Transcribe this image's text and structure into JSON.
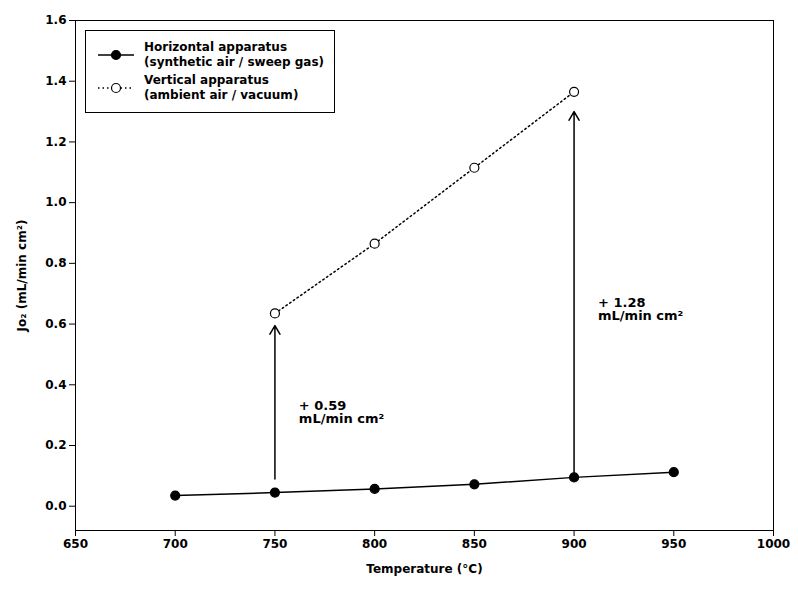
{
  "chart_data": {
    "type": "line",
    "xlabel": "Temperature (°C)",
    "ylabel": "Jo₂ (mL/min cm²)",
    "series": [
      {
        "name": "Horizontal apparatus\n(synthetic air / sweep gas)",
        "x": [
          700,
          750,
          800,
          850,
          900,
          950
        ],
        "values": [
          0.035,
          0.045,
          0.057,
          0.072,
          0.095,
          0.112
        ],
        "color": "#000000",
        "marker": "filled circle",
        "line_style": "solid"
      },
      {
        "name": "Vertical apparatus\n(ambient air / vacuum)",
        "x": [
          750,
          800,
          850,
          900
        ],
        "values": [
          0.635,
          0.865,
          1.115,
          1.365
        ],
        "color": "#000000",
        "marker": "open circle",
        "line_style": "dotted"
      }
    ],
    "annotations": [
      {
        "text": "+ 0.59\nmL/min cm²",
        "x": 762,
        "y": 0.31,
        "arrow": {
          "x": 750,
          "y_start": 0.09,
          "y_end": 0.595
        }
      },
      {
        "text": "+ 1.28\nmL/min cm²",
        "x": 912,
        "y": 0.65,
        "arrow": {
          "x": 900,
          "y_start": 0.11,
          "y_end": 1.3
        }
      }
    ],
    "xlim": [
      650,
      1000
    ],
    "ylim": [
      -0.08,
      1.6
    ],
    "xticks": [
      650,
      700,
      750,
      800,
      850,
      900,
      950,
      1000
    ],
    "yticks": [
      {
        "value": 0.0,
        "label": "0.0"
      },
      0.2,
      0.4,
      0.6,
      0.8,
      {
        "value": 1.0,
        "label": "1.0"
      },
      1.2,
      1.4,
      1.6
    ],
    "grid": false,
    "legend": "upper left"
  }
}
